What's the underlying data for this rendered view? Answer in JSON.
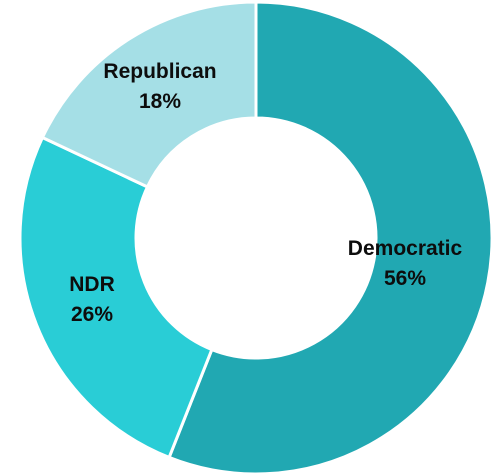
{
  "chart_data": {
    "type": "pie",
    "title": "",
    "series": [
      {
        "categories": [
          "Democratic",
          "NDR",
          "Republican"
        ],
        "values": [
          56,
          26,
          18
        ],
        "labels": [
          "56%",
          "26%",
          "18%"
        ],
        "colors": [
          "#21a8b2",
          "#29cdd6",
          "#a5dfe6"
        ]
      }
    ],
    "hole": "donut",
    "legend": "none"
  }
}
